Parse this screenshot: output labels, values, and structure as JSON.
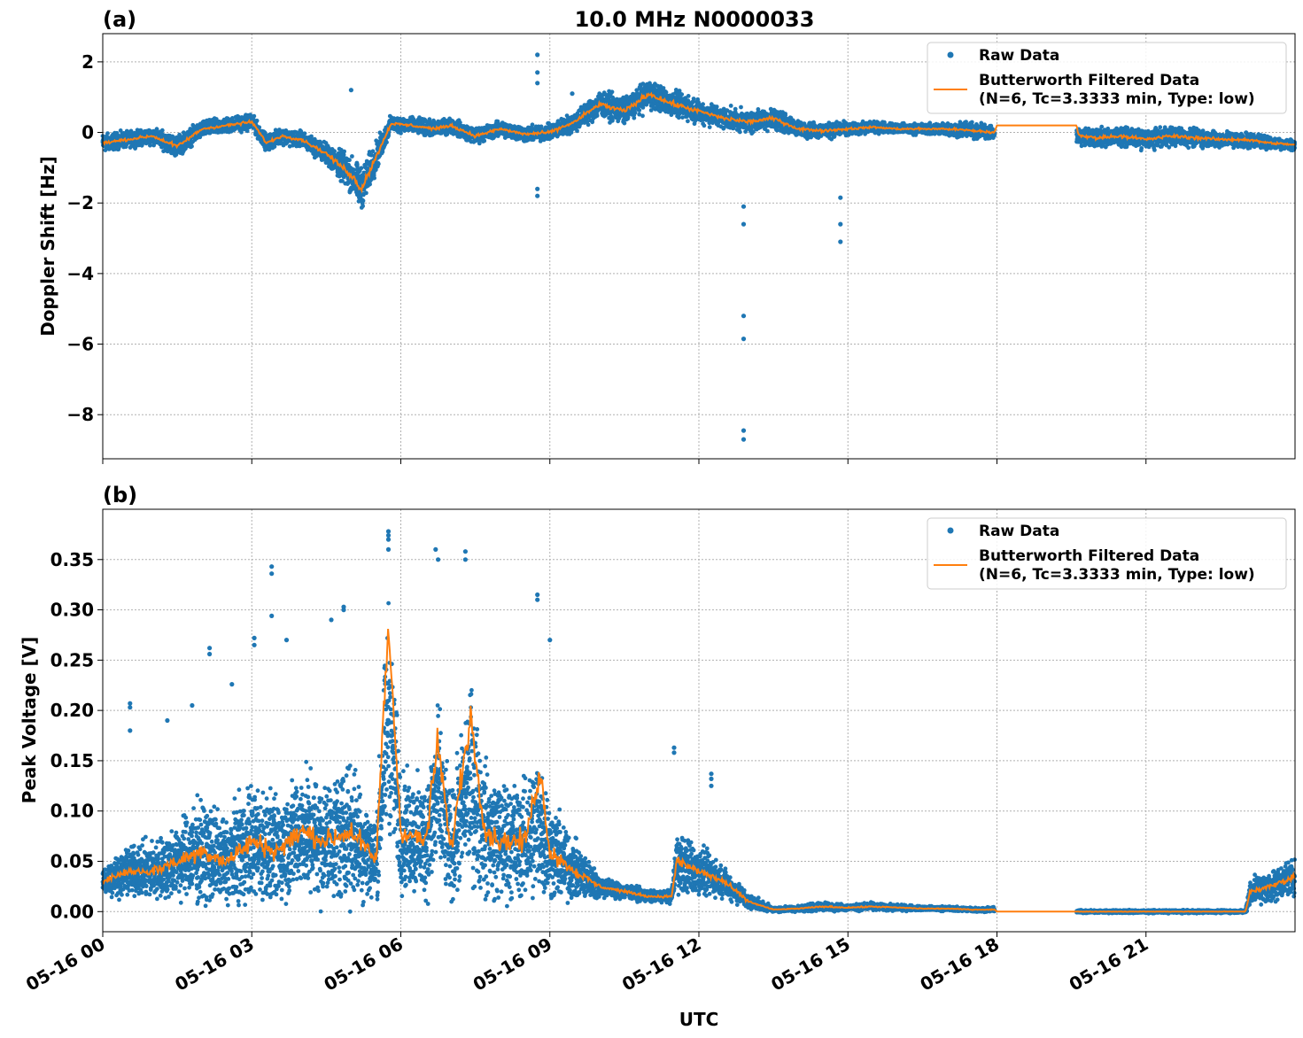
{
  "figure": {
    "title": "10.0 MHz N0000033",
    "x_axis_label": "UTC",
    "x_tick_labels": [
      "05-16 00",
      "05-16 03",
      "05-16 06",
      "05-16 09",
      "05-16 12",
      "05-16 15",
      "05-16 18",
      "05-16 21"
    ],
    "colors": {
      "raw": "#1f77b4",
      "filtered": "#ff7f0e",
      "grid": "#b0b0b0"
    }
  },
  "legend": {
    "raw_label": "Raw Data",
    "filtered_label_line1": "Butterworth Filtered Data",
    "filtered_label_line2": "(N=6, Tc=3.3333 min, Type: low)",
    "placement": "top-right"
  },
  "chart_data": [
    {
      "panel": "(a)",
      "type": "scatter",
      "ylabel": "Doppler Shift [Hz]",
      "x_unit": "hours UTC since 05-16 00",
      "xlim": [
        0,
        24
      ],
      "ylim": [
        -9.25,
        2.8
      ],
      "yticks": [
        2,
        0,
        -2,
        -4,
        -6,
        -8
      ],
      "ytick_labels": [
        "2",
        "0",
        "−2",
        "−4",
        "−6",
        "−8"
      ],
      "grid": true,
      "series": [
        {
          "name": "Raw Data",
          "style": "dots",
          "x": [
            0,
            0.5,
            1,
            1.5,
            2,
            2.5,
            3,
            3.3,
            3.6,
            4,
            4.5,
            5,
            5.2,
            5.5,
            5.8,
            6.2,
            6.7,
            7,
            7.5,
            8,
            8.5,
            9,
            9.5,
            10,
            10.5,
            11,
            11.3,
            11.5,
            12,
            12.5,
            13,
            13.5,
            14,
            14.5,
            15,
            15.5,
            16,
            16.5,
            17,
            17.5,
            17.95,
            19.6,
            20,
            20.5,
            21,
            21.5,
            22,
            22.5,
            23,
            23.5,
            24
          ],
          "y": [
            -0.3,
            -0.2,
            -0.1,
            -0.4,
            0.1,
            0.2,
            0.3,
            -0.3,
            -0.1,
            -0.2,
            -0.6,
            -1.2,
            -1.6,
            -0.7,
            0.25,
            0.2,
            0.1,
            0.2,
            -0.1,
            0.1,
            -0.05,
            0.0,
            0.3,
            0.8,
            0.6,
            1.1,
            0.9,
            0.8,
            0.6,
            0.4,
            0.3,
            0.4,
            0.1,
            0.05,
            0.1,
            0.15,
            0.1,
            0.1,
            0.1,
            0.05,
            0.0,
            -0.1,
            -0.15,
            -0.1,
            -0.2,
            -0.1,
            -0.15,
            -0.2,
            -0.2,
            -0.3,
            -0.35
          ],
          "spread": [
            0.35,
            0.3,
            0.3,
            0.4,
            0.3,
            0.3,
            0.3,
            0.3,
            0.3,
            0.3,
            0.4,
            0.7,
            0.8,
            0.6,
            0.3,
            0.3,
            0.3,
            0.3,
            0.3,
            0.3,
            0.3,
            0.3,
            0.4,
            0.5,
            0.5,
            0.55,
            0.5,
            0.5,
            0.45,
            0.4,
            0.4,
            0.4,
            0.3,
            0.3,
            0.25,
            0.2,
            0.2,
            0.2,
            0.25,
            0.3,
            0.3,
            0.3,
            0.35,
            0.35,
            0.35,
            0.35,
            0.35,
            0.3,
            0.3,
            0.25,
            0.2
          ],
          "outliers": [
            [
              8.75,
              2.2
            ],
            [
              8.75,
              1.7
            ],
            [
              8.75,
              1.4
            ],
            [
              8.75,
              -1.6
            ],
            [
              8.75,
              -1.8
            ],
            [
              12.9,
              -2.1
            ],
            [
              12.9,
              -2.6
            ],
            [
              12.9,
              -5.2
            ],
            [
              12.9,
              -5.85
            ],
            [
              12.9,
              -8.45
            ],
            [
              12.9,
              -8.7
            ],
            [
              14.85,
              -1.85
            ],
            [
              14.85,
              -2.6
            ],
            [
              14.85,
              -3.1
            ],
            [
              5.0,
              1.2
            ],
            [
              9.45,
              1.1
            ]
          ],
          "gap": [
            17.95,
            19.6
          ]
        },
        {
          "name": "Butterworth Filtered Data",
          "style": "line",
          "x": [
            0,
            0.5,
            1,
            1.5,
            2,
            2.5,
            3,
            3.3,
            3.6,
            4,
            4.5,
            5,
            5.2,
            5.5,
            5.8,
            6.2,
            6.7,
            7,
            7.5,
            8,
            8.5,
            9,
            9.5,
            10,
            10.5,
            11,
            11.3,
            11.5,
            12,
            12.5,
            13,
            13.5,
            14,
            14.5,
            15,
            15.5,
            16,
            16.5,
            17,
            17.5,
            17.95,
            18.0,
            19.6,
            19.65,
            20,
            20.5,
            21,
            21.5,
            22,
            22.5,
            23,
            23.5,
            24
          ],
          "y": [
            -0.3,
            -0.2,
            -0.1,
            -0.4,
            0.1,
            0.2,
            0.3,
            -0.3,
            -0.1,
            -0.2,
            -0.6,
            -1.2,
            -1.6,
            -0.7,
            0.25,
            0.2,
            0.1,
            0.2,
            -0.1,
            0.1,
            -0.05,
            0.0,
            0.3,
            0.8,
            0.6,
            1.1,
            0.9,
            0.8,
            0.6,
            0.4,
            0.3,
            0.4,
            0.1,
            0.05,
            0.1,
            0.15,
            0.1,
            0.1,
            0.1,
            0.05,
            0.0,
            0.2,
            0.2,
            -0.1,
            -0.15,
            -0.1,
            -0.2,
            -0.1,
            -0.15,
            -0.2,
            -0.2,
            -0.3,
            -0.35
          ]
        }
      ]
    },
    {
      "panel": "(b)",
      "type": "scatter",
      "ylabel": "Peak Voltage [V]",
      "x_unit": "hours UTC since 05-16 00",
      "xlim": [
        0,
        24
      ],
      "ylim": [
        -0.02,
        0.4
      ],
      "yticks": [
        0.0,
        0.05,
        0.1,
        0.15,
        0.2,
        0.25,
        0.3,
        0.35
      ],
      "ytick_labels": [
        "0.00",
        "0.05",
        "0.10",
        "0.15",
        "0.20",
        "0.25",
        "0.30",
        "0.35"
      ],
      "grid": true,
      "series": [
        {
          "name": "Raw Data",
          "style": "dots",
          "x": [
            0,
            0.5,
            1,
            1.5,
            2,
            2.5,
            3,
            3.5,
            4,
            4.5,
            5,
            5.5,
            5.75,
            6,
            6.5,
            6.75,
            7,
            7.4,
            7.7,
            8,
            8.5,
            8.8,
            9,
            9.5,
            10,
            10.5,
            11,
            11.45,
            11.55,
            12,
            12.5,
            13,
            13.5,
            14,
            14.5,
            15,
            15.5,
            16,
            16.5,
            17,
            17.5,
            17.95,
            19.6,
            20,
            21,
            22,
            23,
            23.1,
            23.5,
            24
          ],
          "y": [
            0.03,
            0.04,
            0.04,
            0.05,
            0.06,
            0.05,
            0.07,
            0.06,
            0.08,
            0.07,
            0.08,
            0.05,
            0.2,
            0.08,
            0.07,
            0.12,
            0.06,
            0.13,
            0.08,
            0.07,
            0.07,
            0.09,
            0.06,
            0.04,
            0.025,
            0.02,
            0.015,
            0.015,
            0.05,
            0.04,
            0.03,
            0.01,
            0.002,
            0.003,
            0.005,
            0.004,
            0.005,
            0.004,
            0.003,
            0.003,
            0.002,
            0.002,
            0.0,
            0.0,
            0.0,
            0.0,
            0.0,
            0.02,
            0.025,
            0.035
          ],
          "spread": [
            0.02,
            0.03,
            0.04,
            0.05,
            0.07,
            0.06,
            0.08,
            0.07,
            0.08,
            0.08,
            0.09,
            0.06,
            0.15,
            0.08,
            0.08,
            0.12,
            0.07,
            0.13,
            0.09,
            0.08,
            0.08,
            0.1,
            0.07,
            0.04,
            0.015,
            0.01,
            0.008,
            0.008,
            0.04,
            0.035,
            0.02,
            0.01,
            0.003,
            0.004,
            0.006,
            0.004,
            0.005,
            0.004,
            0.003,
            0.003,
            0.003,
            0.003,
            0.002,
            0.002,
            0.002,
            0.002,
            0.002,
            0.02,
            0.02,
            0.025
          ],
          "outliers": [
            [
              0.55,
              0.207
            ],
            [
              0.55,
              0.203
            ],
            [
              0.55,
              0.18
            ],
            [
              1.3,
              0.19
            ],
            [
              1.8,
              0.205
            ],
            [
              2.15,
              0.262
            ],
            [
              2.15,
              0.256
            ],
            [
              2.6,
              0.226
            ],
            [
              3.05,
              0.272
            ],
            [
              3.05,
              0.265
            ],
            [
              3.4,
              0.343
            ],
            [
              3.4,
              0.336
            ],
            [
              3.4,
              0.294
            ],
            [
              3.7,
              0.27
            ],
            [
              4.6,
              0.29
            ],
            [
              4.85,
              0.303
            ],
            [
              4.85,
              0.3
            ],
            [
              5.75,
              0.378
            ],
            [
              5.75,
              0.374
            ],
            [
              5.75,
              0.37
            ],
            [
              5.75,
              0.36
            ],
            [
              6.7,
              0.36
            ],
            [
              6.75,
              0.35
            ],
            [
              7.3,
              0.358
            ],
            [
              7.3,
              0.35
            ],
            [
              8.75,
              0.315
            ],
            [
              8.75,
              0.31
            ],
            [
              9.0,
              0.27
            ],
            [
              11.5,
              0.163
            ],
            [
              11.5,
              0.158
            ],
            [
              12.25,
              0.137
            ],
            [
              12.25,
              0.132
            ],
            [
              12.25,
              0.125
            ]
          ],
          "gap": [
            17.95,
            19.6
          ]
        },
        {
          "name": "Butterworth Filtered Data",
          "style": "line",
          "x": [
            0,
            0.5,
            1,
            1.5,
            2,
            2.5,
            3,
            3.5,
            4,
            4.5,
            5,
            5.5,
            5.75,
            6,
            6.5,
            6.75,
            7,
            7.4,
            7.7,
            8,
            8.5,
            8.8,
            9,
            9.5,
            10,
            10.5,
            11,
            11.45,
            11.55,
            12,
            12.5,
            13,
            13.5,
            14,
            14.5,
            15,
            15.5,
            16,
            16.5,
            17,
            17.5,
            17.95,
            18.0,
            19.6,
            20,
            21,
            22,
            23,
            23.1,
            23.5,
            24
          ],
          "y": [
            0.03,
            0.04,
            0.04,
            0.05,
            0.06,
            0.05,
            0.07,
            0.06,
            0.08,
            0.07,
            0.08,
            0.05,
            0.285,
            0.08,
            0.07,
            0.17,
            0.06,
            0.195,
            0.08,
            0.07,
            0.07,
            0.14,
            0.06,
            0.04,
            0.025,
            0.02,
            0.015,
            0.015,
            0.05,
            0.04,
            0.03,
            0.01,
            0.002,
            0.003,
            0.005,
            0.004,
            0.005,
            0.004,
            0.003,
            0.003,
            0.002,
            0.002,
            0.0,
            0.0,
            0.0,
            0.0,
            0.0,
            0.0,
            0.02,
            0.025,
            0.035
          ]
        }
      ]
    }
  ]
}
